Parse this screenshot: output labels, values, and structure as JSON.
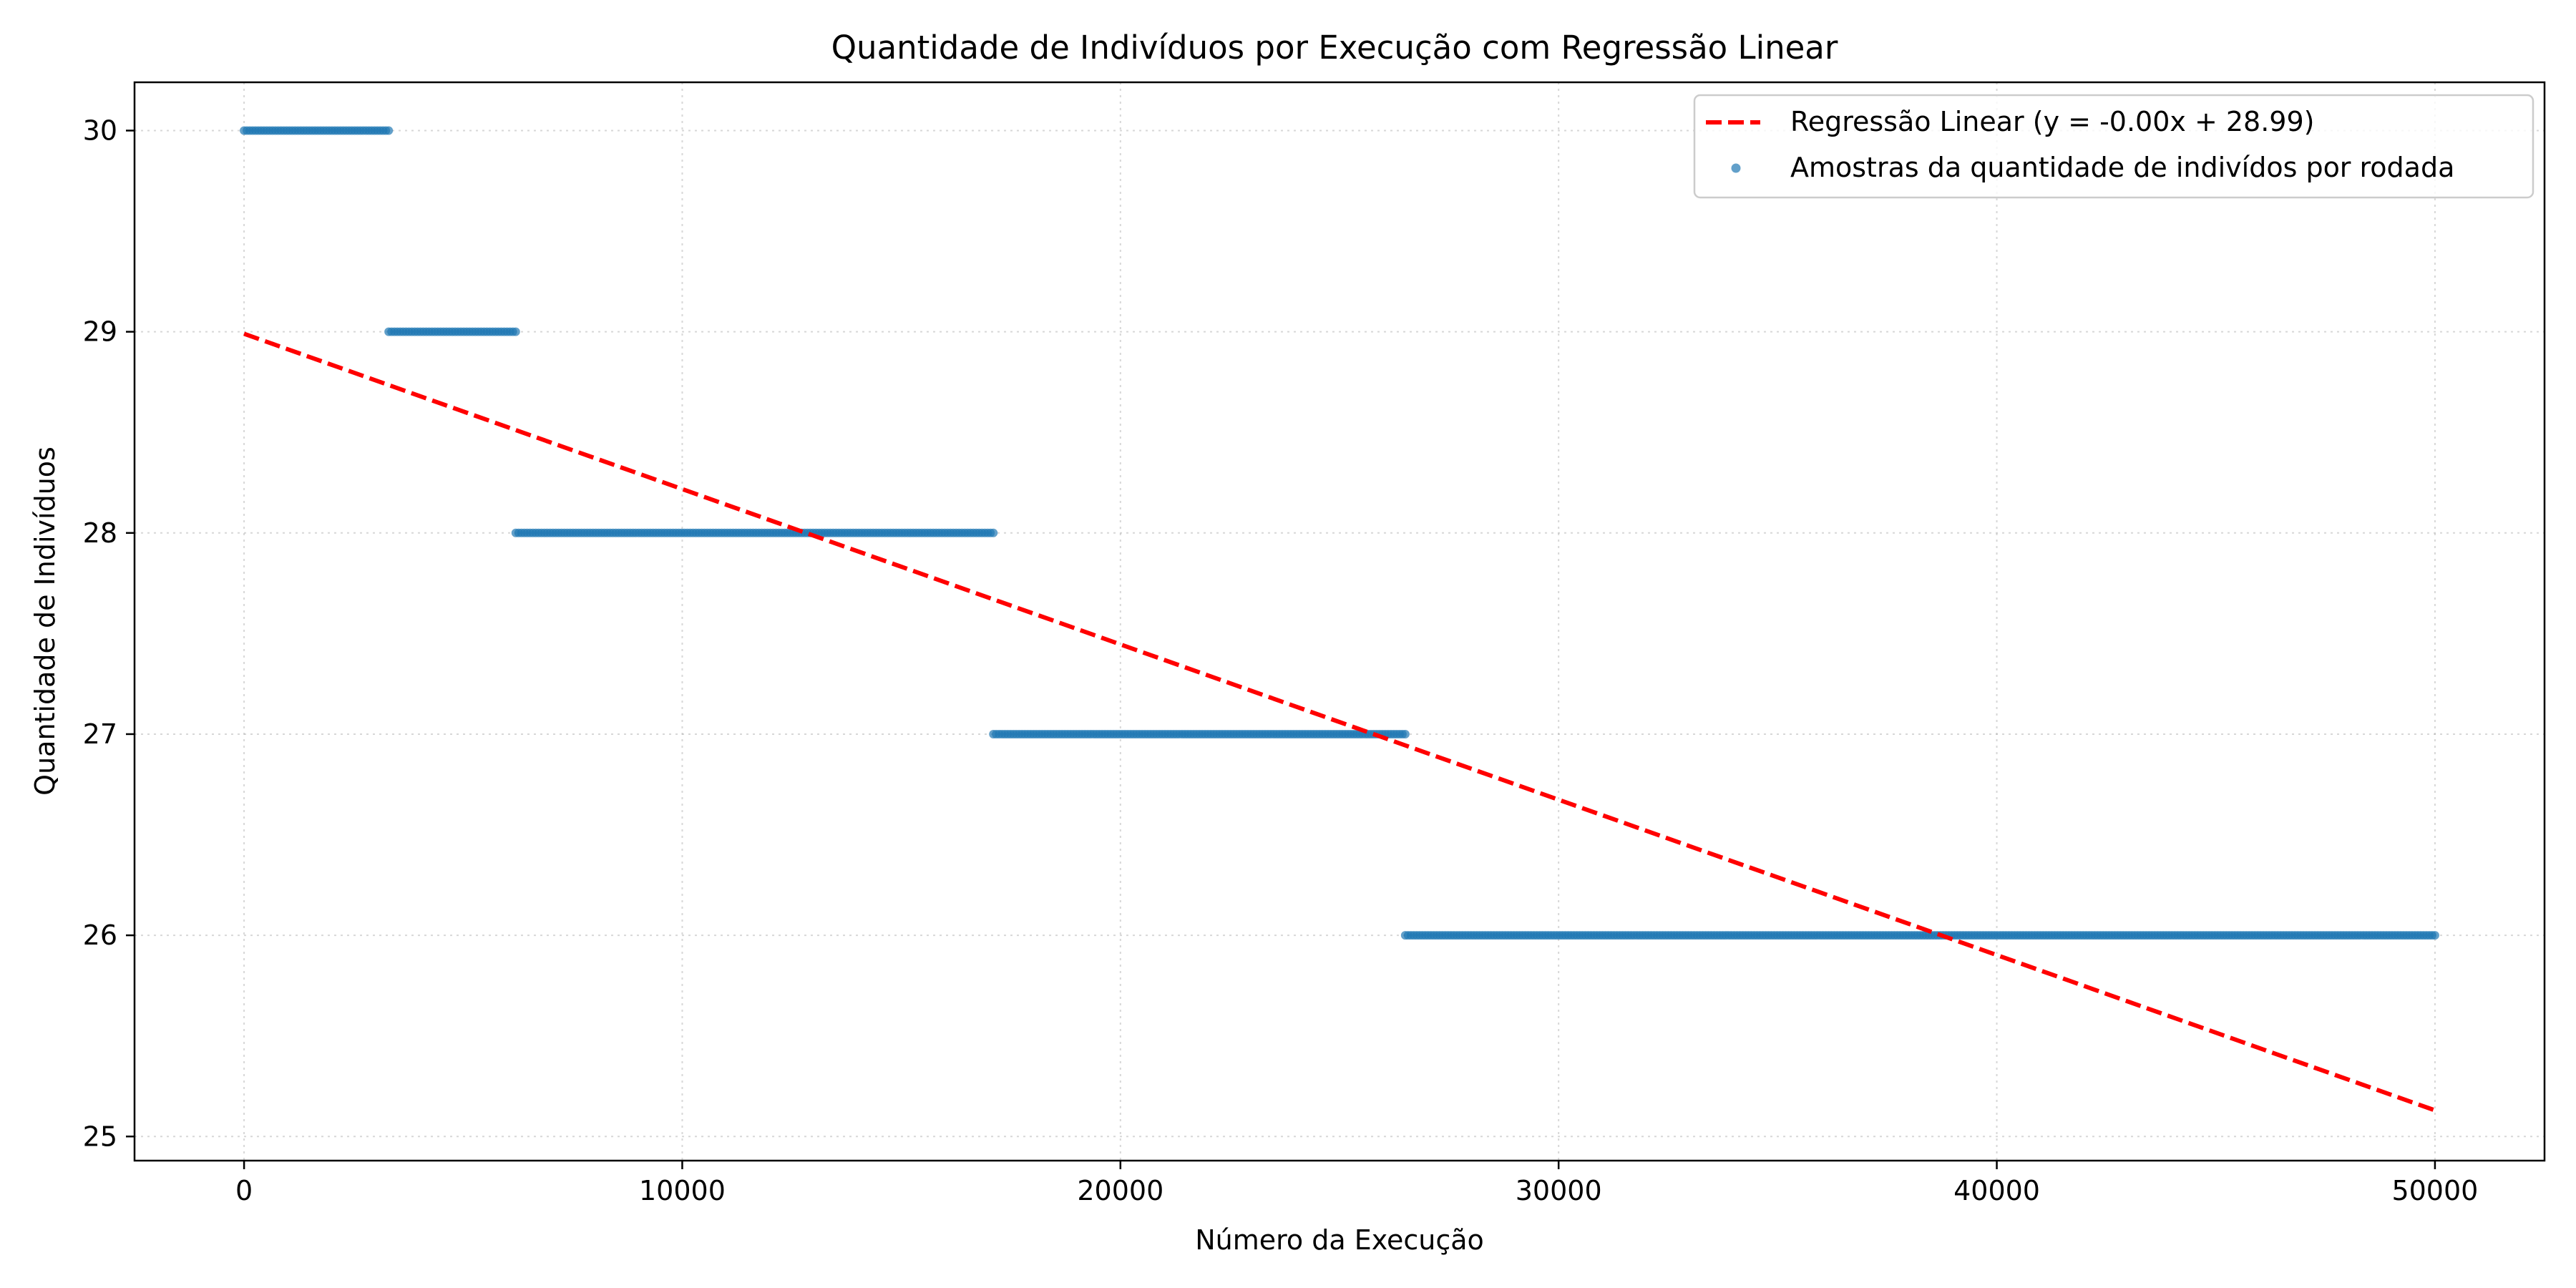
{
  "chart_data": {
    "type": "scatter",
    "title": "Quantidade de Indivíduos por Execução com Regressão Linear",
    "xlabel": "Número da Execução",
    "ylabel": "Quantidade de Indivíduos",
    "xlim": [
      -2500,
      52500
    ],
    "ylim": [
      24.88,
      30.24
    ],
    "xticks": [
      0,
      10000,
      20000,
      30000,
      40000,
      50000
    ],
    "yticks": [
      25,
      26,
      27,
      28,
      29,
      30
    ],
    "grid": true,
    "legend_position": "top-right",
    "series": [
      {
        "name": "Regressão Linear (y = -0.00x + 28.99)",
        "kind": "line",
        "style": "dashed",
        "color": "#ff0000",
        "x": [
          0,
          50000
        ],
        "y": [
          28.99,
          25.13
        ]
      },
      {
        "name": "Amostras da quantidade de indivídos por rodada",
        "kind": "scatter",
        "color": "#1f77b4",
        "segments": [
          {
            "x_start": 0,
            "x_end": 3300,
            "y": 30
          },
          {
            "x_start": 3300,
            "x_end": 6200,
            "y": 29
          },
          {
            "x_start": 6200,
            "x_end": 17100,
            "y": 28
          },
          {
            "x_start": 17100,
            "x_end": 26500,
            "y": 27
          },
          {
            "x_start": 26500,
            "x_end": 50000,
            "y": 26
          }
        ]
      }
    ]
  }
}
